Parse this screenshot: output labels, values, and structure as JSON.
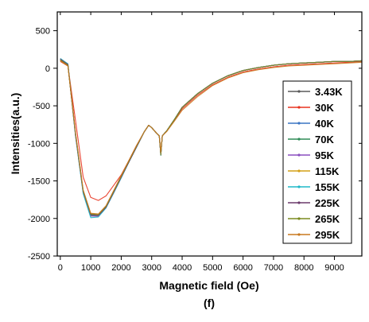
{
  "chart_data": {
    "type": "line",
    "title": "",
    "xlabel": "Magnetic field (Oe)",
    "ylabel": "Intensities(a.u.)",
    "caption": "(f)",
    "xlim": [
      -100,
      9900
    ],
    "ylim": [
      -2500,
      750
    ],
    "x_ticks": [
      0,
      1000,
      2000,
      3000,
      4000,
      5000,
      6000,
      7000,
      8000,
      9000
    ],
    "y_ticks": [
      500,
      0,
      -500,
      -1000,
      -1500,
      -2000,
      -2500
    ],
    "grid": false,
    "legend_position": "right",
    "x": [
      0,
      250,
      500,
      750,
      1000,
      1250,
      1500,
      1750,
      2000,
      2250,
      2500,
      2750,
      2900,
      3000,
      3150,
      3250,
      3300,
      3350,
      3500,
      3750,
      4000,
      4500,
      5000,
      5500,
      6000,
      6500,
      7000,
      7500,
      8000,
      8500,
      9000,
      9500,
      9900
    ],
    "series": [
      {
        "name": "3.43K",
        "color": "#5a5a5a",
        "values": [
          130,
          50,
          -900,
          -1650,
          -1950,
          -1960,
          -1850,
          -1650,
          -1450,
          -1250,
          -1050,
          -850,
          -760,
          -790,
          -860,
          -900,
          -1150,
          -900,
          -830,
          -680,
          -520,
          -340,
          -200,
          -100,
          -30,
          10,
          40,
          60,
          70,
          80,
          90,
          90,
          100
        ]
      },
      {
        "name": "30K",
        "color": "#e8321e",
        "values": [
          90,
          30,
          -700,
          -1450,
          -1720,
          -1760,
          -1700,
          -1560,
          -1420,
          -1230,
          -1030,
          -850,
          -760,
          -790,
          -860,
          -900,
          -1140,
          -900,
          -830,
          -690,
          -540,
          -360,
          -220,
          -120,
          -50,
          -10,
          20,
          40,
          50,
          60,
          70,
          80,
          90
        ]
      },
      {
        "name": "40K",
        "color": "#3a75c4",
        "values": [
          120,
          40,
          -880,
          -1640,
          -1950,
          -1960,
          -1850,
          -1650,
          -1450,
          -1250,
          -1050,
          -850,
          -760,
          -790,
          -860,
          -900,
          -1150,
          -900,
          -830,
          -680,
          -520,
          -340,
          -200,
          -100,
          -30,
          10,
          40,
          60,
          70,
          80,
          90,
          90,
          100
        ]
      },
      {
        "name": "70K",
        "color": "#2e8b57",
        "values": [
          110,
          40,
          -890,
          -1650,
          -1960,
          -1960,
          -1850,
          -1650,
          -1450,
          -1250,
          -1050,
          -850,
          -760,
          -790,
          -860,
          -900,
          -1160,
          -900,
          -830,
          -680,
          -520,
          -340,
          -200,
          -100,
          -30,
          10,
          40,
          60,
          70,
          80,
          90,
          90,
          100
        ]
      },
      {
        "name": "95K",
        "color": "#8a4fbf",
        "values": [
          120,
          50,
          -900,
          -1660,
          -1970,
          -1970,
          -1860,
          -1660,
          -1460,
          -1250,
          -1050,
          -850,
          -760,
          -790,
          -860,
          -900,
          -1150,
          -900,
          -830,
          -680,
          -520,
          -340,
          -200,
          -100,
          -30,
          10,
          40,
          60,
          70,
          80,
          90,
          90,
          100
        ]
      },
      {
        "name": "115K",
        "color": "#d4a017",
        "values": [
          110,
          40,
          -870,
          -1640,
          -1940,
          -1950,
          -1840,
          -1640,
          -1440,
          -1240,
          -1040,
          -850,
          -760,
          -790,
          -860,
          -900,
          -1150,
          -900,
          -830,
          -680,
          -520,
          -340,
          -200,
          -100,
          -30,
          10,
          40,
          60,
          70,
          80,
          90,
          90,
          100
        ]
      },
      {
        "name": "155K",
        "color": "#1fb8c8",
        "values": [
          130,
          60,
          -900,
          -1670,
          -1990,
          -1980,
          -1860,
          -1660,
          -1460,
          -1250,
          -1050,
          -850,
          -760,
          -790,
          -860,
          -900,
          -1150,
          -900,
          -830,
          -680,
          -520,
          -340,
          -200,
          -100,
          -30,
          10,
          40,
          60,
          70,
          80,
          90,
          90,
          100
        ]
      },
      {
        "name": "225K",
        "color": "#6b3a6b",
        "values": [
          120,
          50,
          -880,
          -1640,
          -1950,
          -1960,
          -1850,
          -1650,
          -1450,
          -1250,
          -1050,
          -850,
          -760,
          -790,
          -860,
          -900,
          -1150,
          -900,
          -830,
          -680,
          -520,
          -340,
          -200,
          -100,
          -30,
          10,
          40,
          60,
          70,
          80,
          90,
          90,
          100
        ]
      },
      {
        "name": "265K",
        "color": "#7a8a1e",
        "values": [
          110,
          40,
          -870,
          -1630,
          -1940,
          -1950,
          -1840,
          -1640,
          -1440,
          -1240,
          -1040,
          -850,
          -760,
          -790,
          -860,
          -900,
          -1150,
          -900,
          -830,
          -680,
          -520,
          -340,
          -200,
          -100,
          -30,
          10,
          40,
          60,
          70,
          80,
          90,
          90,
          100
        ]
      },
      {
        "name": "295K",
        "color": "#c8781e",
        "values": [
          100,
          30,
          -860,
          -1620,
          -1930,
          -1940,
          -1830,
          -1630,
          -1430,
          -1230,
          -1030,
          -850,
          -760,
          -790,
          -860,
          -900,
          -1120,
          -900,
          -840,
          -700,
          -560,
          -380,
          -230,
          -130,
          -60,
          -20,
          10,
          30,
          40,
          50,
          60,
          70,
          80
        ]
      }
    ]
  }
}
